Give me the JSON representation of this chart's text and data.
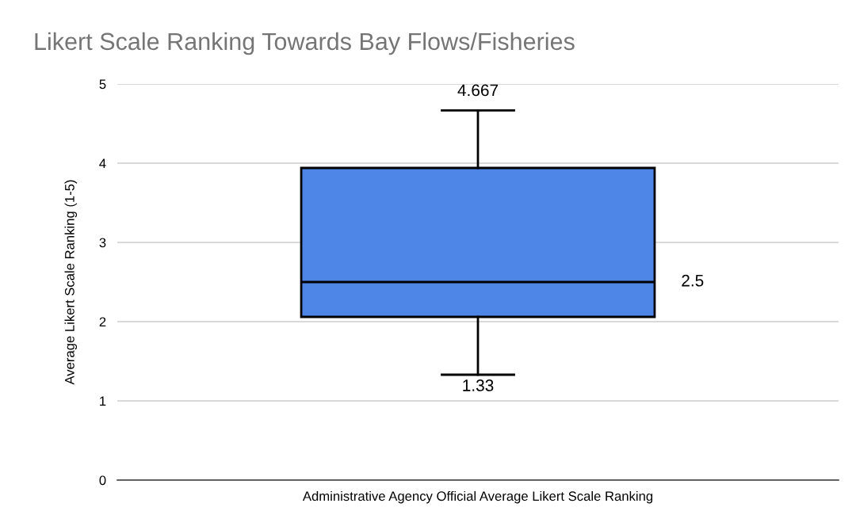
{
  "chart_data": {
    "type": "box",
    "title": "Likert Scale Ranking Towards Bay Flows/Fisheries",
    "ylabel": "Average Likert Scale Ranking (1-5)",
    "categories": [
      "Administrative Agency Official Average Likert Scale Ranking"
    ],
    "boxes": [
      {
        "low": 1.33,
        "q1": 2.06,
        "median": 2.5,
        "q3": 3.94,
        "high": 4.667
      }
    ],
    "color": "#4e86e8",
    "ylim": [
      0,
      5
    ],
    "yticks": [
      0,
      1,
      2,
      3,
      4,
      5
    ],
    "grid": "y",
    "annotations": [
      {
        "text": "4.667",
        "y": 4.667
      },
      "2.5",
      {
        "text": "1.33",
        "y": 1.33
      }
    ]
  }
}
